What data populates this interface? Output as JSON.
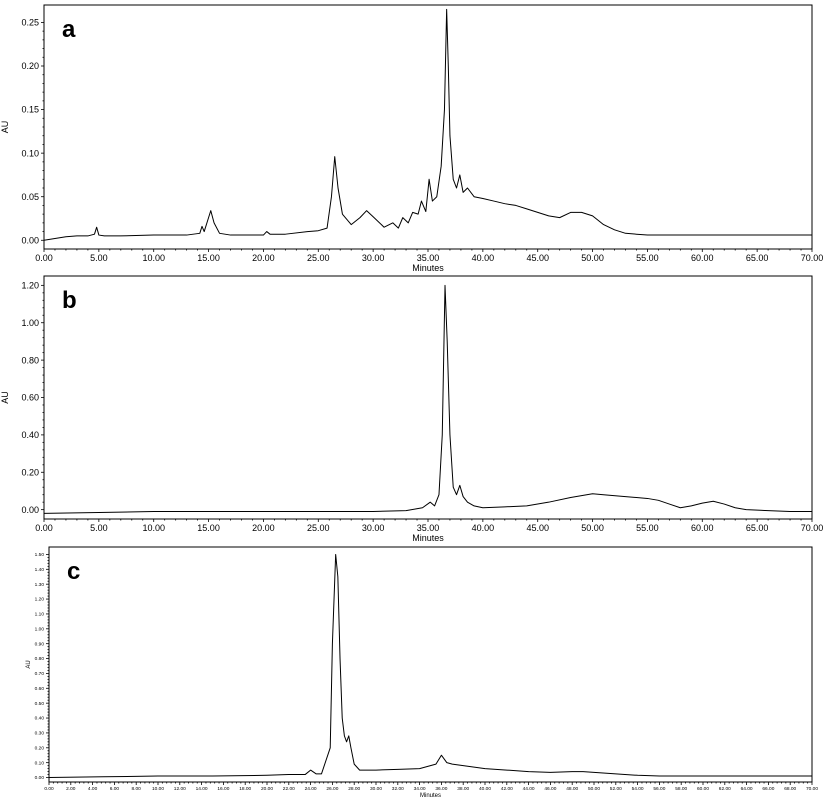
{
  "chart_data": [
    {
      "type": "line",
      "panel_label": "a",
      "xlabel": "Minutes",
      "ylabel": "AU",
      "xlim": [
        0,
        70
      ],
      "ylim": [
        -0.01,
        0.27
      ],
      "x_ticks": [
        0,
        5,
        10,
        15,
        20,
        25,
        30,
        35,
        40,
        45,
        50,
        55,
        60,
        65,
        70
      ],
      "x_tick_labels": [
        "0.00",
        "5.00",
        "10.00",
        "15.00",
        "20.00",
        "25.00",
        "30.00",
        "35.00",
        "40.00",
        "45.00",
        "50.00",
        "55.00",
        "60.00",
        "65.00",
        "70.00"
      ],
      "y_ticks": [
        0,
        0.05,
        0.1,
        0.15,
        0.2,
        0.25
      ],
      "y_tick_labels": [
        "0.00",
        "0.05",
        "0.10",
        "0.15",
        "0.20",
        "0.25"
      ],
      "grid": false,
      "series": [
        {
          "x": [
            0,
            1,
            2,
            3,
            4,
            4.6,
            4.8,
            5.0,
            5.5,
            7,
            10,
            13,
            14.2,
            14.4,
            14.6,
            14.9,
            15.2,
            15.5,
            16,
            17,
            20,
            20.3,
            20.6,
            22,
            24,
            25,
            25.8,
            26.2,
            26.5,
            26.8,
            27.2,
            28,
            28.8,
            29.4,
            30,
            31,
            31.8,
            32.3,
            32.7,
            33.2,
            33.6,
            34.1,
            34.4,
            34.8,
            35.1,
            35.4,
            35.8,
            36.2,
            36.5,
            36.7,
            36.85,
            37.0,
            37.3,
            37.6,
            37.9,
            38.2,
            38.6,
            39.2,
            40,
            41,
            42,
            43,
            44,
            45,
            46,
            47,
            48,
            49,
            50,
            51,
            52,
            53,
            54,
            55,
            56,
            58,
            60,
            65,
            70
          ],
          "y": [
            0.0,
            0.002,
            0.004,
            0.005,
            0.005,
            0.007,
            0.015,
            0.006,
            0.005,
            0.005,
            0.006,
            0.006,
            0.008,
            0.016,
            0.01,
            0.022,
            0.034,
            0.02,
            0.008,
            0.006,
            0.006,
            0.01,
            0.007,
            0.007,
            0.01,
            0.011,
            0.014,
            0.05,
            0.096,
            0.06,
            0.03,
            0.018,
            0.026,
            0.034,
            0.027,
            0.015,
            0.02,
            0.014,
            0.026,
            0.02,
            0.032,
            0.03,
            0.045,
            0.033,
            0.07,
            0.045,
            0.05,
            0.085,
            0.15,
            0.265,
            0.2,
            0.12,
            0.07,
            0.06,
            0.075,
            0.055,
            0.06,
            0.05,
            0.048,
            0.045,
            0.042,
            0.04,
            0.036,
            0.032,
            0.028,
            0.026,
            0.032,
            0.032,
            0.028,
            0.018,
            0.012,
            0.008,
            0.007,
            0.006,
            0.006,
            0.006,
            0.006,
            0.006,
            0.006
          ]
        }
      ]
    },
    {
      "type": "line",
      "panel_label": "b",
      "xlabel": "Minutes",
      "ylabel": "AU",
      "xlim": [
        0,
        70
      ],
      "ylim": [
        -0.05,
        1.25
      ],
      "x_ticks": [
        0,
        5,
        10,
        15,
        20,
        25,
        30,
        35,
        40,
        45,
        50,
        55,
        60,
        65,
        70
      ],
      "x_tick_labels": [
        "0.00",
        "5.00",
        "10.00",
        "15.00",
        "20.00",
        "25.00",
        "30.00",
        "35.00",
        "40.00",
        "45.00",
        "50.00",
        "55.00",
        "60.00",
        "65.00",
        "70.00"
      ],
      "y_ticks": [
        0,
        0.2,
        0.4,
        0.6,
        0.8,
        1.0,
        1.2
      ],
      "y_tick_labels": [
        "0.00",
        "0.20",
        "0.40",
        "0.60",
        "0.80",
        "1.00",
        "1.20"
      ],
      "grid": false,
      "series": [
        {
          "x": [
            0,
            5,
            10,
            15,
            20,
            25,
            30,
            33,
            34.5,
            35.2,
            35.6,
            36,
            36.3,
            36.55,
            36.75,
            37.0,
            37.3,
            37.6,
            37.9,
            38.2,
            38.6,
            39.2,
            40,
            42,
            44,
            46,
            48,
            50,
            51,
            53,
            55,
            56,
            57,
            58,
            59,
            60,
            61,
            62,
            63,
            64,
            66,
            68,
            70
          ],
          "y": [
            -0.02,
            -0.015,
            -0.01,
            -0.01,
            -0.01,
            -0.01,
            -0.01,
            -0.005,
            0.01,
            0.04,
            0.02,
            0.08,
            0.4,
            1.2,
            0.9,
            0.4,
            0.12,
            0.08,
            0.13,
            0.07,
            0.04,
            0.02,
            0.01,
            0.015,
            0.02,
            0.04,
            0.065,
            0.085,
            0.08,
            0.07,
            0.06,
            0.05,
            0.03,
            0.01,
            0.02,
            0.035,
            0.045,
            0.03,
            0.01,
            0.0,
            -0.005,
            -0.01,
            -0.01
          ]
        }
      ]
    },
    {
      "type": "line",
      "panel_label": "c",
      "xlabel": "Minutes",
      "ylabel": "AU",
      "xlim": [
        0,
        70
      ],
      "ylim": [
        -0.03,
        1.55
      ],
      "x_ticks": [
        0,
        2,
        4,
        6,
        8,
        10,
        12,
        14,
        16,
        18,
        20,
        22,
        24,
        26,
        28,
        30,
        32,
        34,
        36,
        38,
        40,
        42,
        44,
        46,
        48,
        50,
        52,
        54,
        56,
        58,
        60,
        62,
        64,
        66,
        68,
        70
      ],
      "x_tick_labels": [
        "0.00",
        "2.00",
        "4.00",
        "6.00",
        "8.00",
        "10.00",
        "12.00",
        "14.00",
        "16.00",
        "18.00",
        "20.00",
        "22.00",
        "24.00",
        "26.00",
        "28.00",
        "30.00",
        "32.00",
        "34.00",
        "36.00",
        "38.00",
        "40.00",
        "42.00",
        "44.00",
        "46.00",
        "48.00",
        "50.00",
        "52.00",
        "54.00",
        "56.00",
        "58.00",
        "60.00",
        "62.00",
        "64.00",
        "66.00",
        "68.00",
        "70.00"
      ],
      "y_ticks": [
        0,
        0.1,
        0.2,
        0.3,
        0.4,
        0.5,
        0.6,
        0.7,
        0.8,
        0.9,
        1.0,
        1.1,
        1.2,
        1.3,
        1.4,
        1.5
      ],
      "y_tick_labels": [
        "0.00",
        "0.10",
        "0.20",
        "0.30",
        "0.40",
        "0.50",
        "0.60",
        "0.70",
        "0.80",
        "0.90",
        "1.00",
        "1.10",
        "1.20",
        "1.30",
        "1.40",
        "1.50"
      ],
      "grid": false,
      "series": [
        {
          "x": [
            0,
            5,
            10,
            15,
            20,
            22,
            23.5,
            24,
            24.5,
            25,
            25.8,
            26,
            26.3,
            26.5,
            26.7,
            26.9,
            27.1,
            27.3,
            27.5,
            27.7,
            28,
            28.5,
            29,
            30,
            32,
            34,
            35,
            35.5,
            36,
            36.5,
            37,
            38,
            40,
            42,
            44,
            46,
            48,
            49,
            50,
            52,
            54,
            56,
            60,
            65,
            70
          ],
          "y": [
            0.0,
            0.005,
            0.01,
            0.01,
            0.015,
            0.02,
            0.02,
            0.05,
            0.025,
            0.025,
            0.2,
            0.9,
            1.5,
            1.35,
            0.8,
            0.4,
            0.28,
            0.24,
            0.28,
            0.2,
            0.09,
            0.05,
            0.05,
            0.05,
            0.055,
            0.06,
            0.08,
            0.09,
            0.15,
            0.1,
            0.09,
            0.08,
            0.06,
            0.05,
            0.04,
            0.035,
            0.04,
            0.04,
            0.035,
            0.025,
            0.015,
            0.01,
            0.01,
            0.01,
            0.01
          ]
        }
      ]
    }
  ]
}
